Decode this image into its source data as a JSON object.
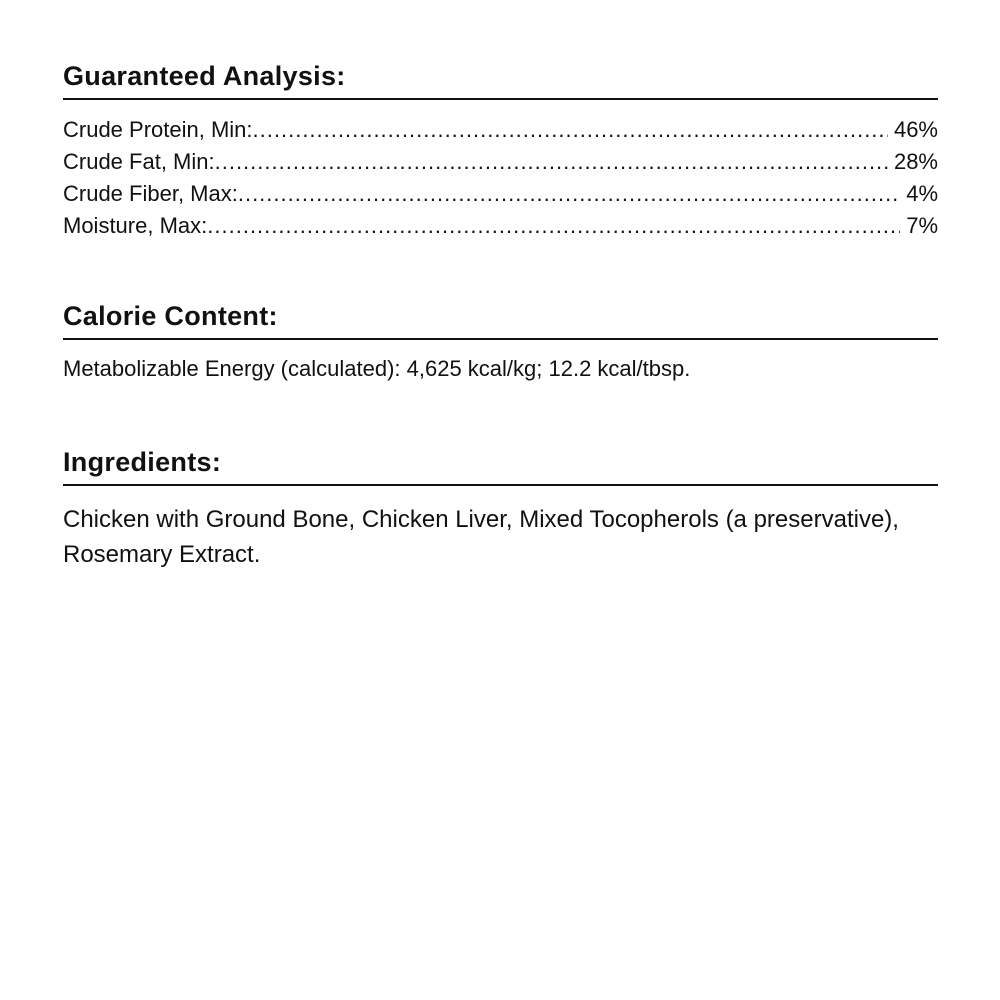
{
  "guaranteed_analysis": {
    "title": "Guaranteed Analysis:",
    "rows": [
      {
        "label": "Crude Protein, Min:",
        "value": "46%"
      },
      {
        "label": "Crude Fat, Min:",
        "value": "28%"
      },
      {
        "label": "Crude Fiber, Max:",
        "value": "4%"
      },
      {
        "label": "Moisture, Max:",
        "value": "7%"
      }
    ]
  },
  "calorie_content": {
    "title": "Calorie Content:",
    "text": "Metabolizable Energy (calculated): 4,625 kcal/kg; 12.2 kcal/tbsp."
  },
  "ingredients": {
    "title": "Ingredients:",
    "text": "Chicken with Ground Bone, Chicken Liver, Mixed Tocopherols (a preservative), Rosemary Extract."
  }
}
